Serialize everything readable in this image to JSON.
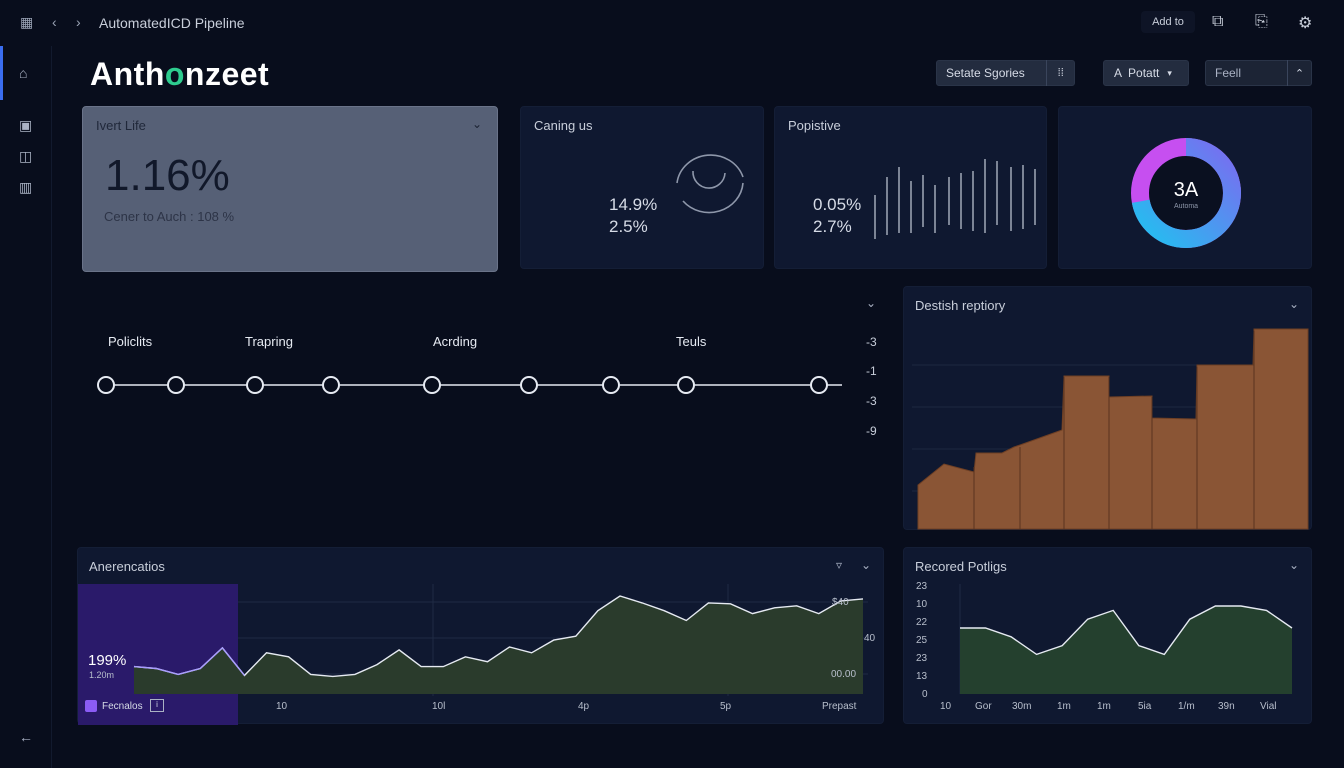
{
  "topbar": {
    "title": "AutomatedICD Pipeline",
    "add_label": "Add to",
    "icons": [
      "grid-icon",
      "back-icon",
      "forward-icon",
      "copy-icon",
      "share-icon",
      "settings-icon"
    ]
  },
  "sidebar": {
    "icons": [
      "home-icon",
      "briefcase-icon",
      "layout-icon",
      "library-icon",
      "back-arrow-icon"
    ]
  },
  "brand": {
    "part1": "Anth",
    "o": "o",
    "part2": "nzeet"
  },
  "header": {
    "select_label": "Setate Sgories",
    "action_label": "Potatt",
    "field_value": "Feell"
  },
  "kpi": {
    "title": "Ivert Life",
    "value": "1.16%",
    "subtitle": "Cener to Auch : 108 %"
  },
  "caring": {
    "title": "Caning us",
    "v1": "14.9%",
    "v2": "2.5%"
  },
  "positive": {
    "title": "Popistive",
    "v1": "0.05%",
    "v2": "2.7%"
  },
  "donut": {
    "value": "3A",
    "caption": "Automa",
    "fill": 0.72,
    "colors": [
      "#22c0f0",
      "#c64ff0",
      "#7a6cf0"
    ]
  },
  "pipeline": {
    "stages": [
      "Policlits",
      "Trapring",
      "Acrding",
      "Teuls"
    ],
    "node_count": 9,
    "right_labels": [
      "-3",
      "-1",
      "-3",
      "-9"
    ]
  },
  "bar_card": {
    "title": "Destish reptiory",
    "color": "#8a5535"
  },
  "area_left": {
    "title": "Anerencatios",
    "value": "199%",
    "value_sub": "1.20m",
    "legend": "Fecnalos",
    "x_labels": [
      "10",
      "10l",
      "4p",
      "5p",
      "Prepast"
    ],
    "y_labels": [
      "$40",
      "40",
      "00.00"
    ],
    "series": [
      0.28,
      0.26,
      0.2,
      0.26,
      0.47,
      0.19,
      0.42,
      0.38,
      0.2,
      0.18,
      0.2,
      0.3,
      0.45,
      0.28,
      0.28,
      0.38,
      0.33,
      0.48,
      0.42,
      0.55,
      0.59,
      0.85,
      1.0,
      0.93,
      0.85,
      0.75,
      0.93,
      0.92,
      0.82,
      0.88,
      0.9,
      0.82,
      0.95,
      0.97
    ]
  },
  "area_right": {
    "title": "Recored Potligs",
    "y_labels": [
      "23",
      "10",
      "22",
      "25",
      "23",
      "13",
      "0"
    ],
    "x_labels": [
      "10",
      "Gor",
      "30m",
      "1m",
      "1m",
      "5ia",
      "1/m",
      "39n",
      "Vial"
    ],
    "series": [
      0.75,
      0.75,
      0.65,
      0.45,
      0.55,
      0.85,
      0.95,
      0.55,
      0.45,
      0.85,
      1.0,
      1.0,
      0.95,
      0.75
    ]
  }
}
